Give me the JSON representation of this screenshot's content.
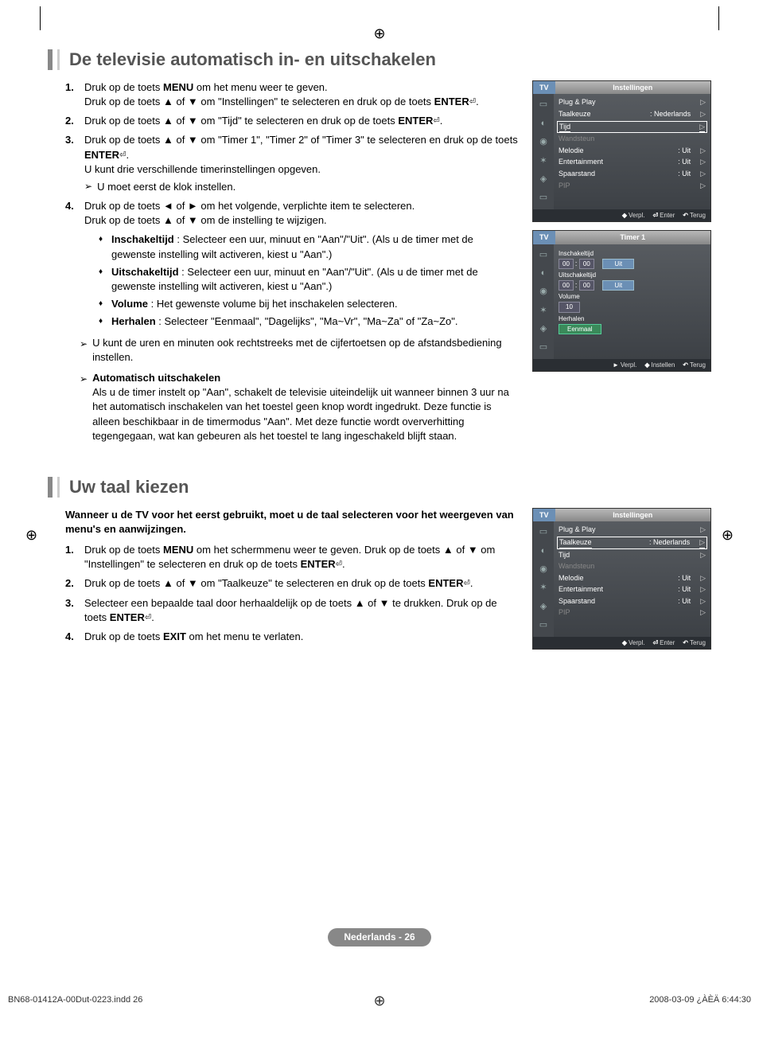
{
  "section1": {
    "title": "De televisie automatisch in- en uitschakelen",
    "steps": [
      {
        "lines": [
          "Druk op de toets <b>MENU</b> om het menu weer te geven.",
          "Druk op de toets ▲ of ▼ om \"Instellingen\" te selecteren en druk op de toets <b>ENTER</b><span class='enter-icon'>⏎</span>."
        ]
      },
      {
        "lines": [
          "Druk op de toets ▲ of ▼ om \"Tijd\" te selecteren en druk op de toets <b>ENTER</b><span class='enter-icon'>⏎</span>."
        ]
      },
      {
        "lines": [
          "Druk op de toets ▲ of ▼ om \"Timer 1\", \"Timer 2\" of \"Timer 3\" te selecteren en druk op de toets <b>ENTER</b><span class='enter-icon'>⏎</span>.",
          "U kunt drie verschillende timerinstellingen opgeven."
        ],
        "note": "U moet eerst de klok instellen."
      },
      {
        "lines": [
          "Druk op de toets ◄ of ► om het volgende, verplichte item te selecteren.",
          "Druk op de toets ▲ of ▼ om de instelling te wijzigen."
        ]
      }
    ],
    "bullets": [
      "<b>Inschakeltijd</b> : Selecteer een uur, minuut en \"Aan\"/\"Uit\". (Als u de timer met de gewenste instelling wilt activeren, kiest u \"Aan\".)",
      "<b>Uitschakeltijd</b> : Selecteer een uur, minuut en \"Aan\"/\"Uit\". (Als u de timer met de gewenste instelling wilt activeren, kiest u \"Aan\".)",
      "<b>Volume</b> : Het gewenste volume bij het inschakelen selecteren.",
      "<b>Herhalen</b> : Selecteer \"Eenmaal\", \"Dagelijks\", \"Ma~Vr\", \"Ma~Za\" of \"Za~Zo\"."
    ],
    "note2": "U kunt de uren en minuten ook rechtstreeks met de cijfertoetsen op de afstandsbediening instellen.",
    "note3_title": "Automatisch uitschakelen",
    "note3_body": "Als u de timer instelt op \"Aan\", schakelt de televisie uiteindelijk uit wanneer binnen 3 uur na het automatisch inschakelen van het toestel geen knop wordt ingedrukt. Deze functie is alleen beschikbaar in de timermodus \"Aan\". Met deze functie wordt oververhitting tegengegaan, wat kan gebeuren als het toestel te lang ingeschakeld blijft staan."
  },
  "section2": {
    "title": "Uw taal kiezen",
    "intro": "Wanneer u de TV voor het eerst gebruikt, moet u de taal selecteren voor het weergeven van menu's en aanwijzingen.",
    "steps": [
      "Druk op de toets <b>MENU</b> om het schermmenu weer te geven. Druk op de toets ▲ of ▼ om \"Instellingen\" te selecteren en druk op de toets <b>ENTER</b><span class='enter-icon'>⏎</span>.",
      "Druk op de toets ▲ of ▼ om \"Taalkeuze\" te selecteren en druk op de toets <b>ENTER</b><span class='enter-icon'>⏎</span>.",
      "Selecteer een bepaalde taal door herhaaldelijk op de toets ▲ of ▼ te drukken. Druk op de toets <b>ENTER</b><span class='enter-icon'>⏎</span>.",
      "Druk op de toets <b>EXIT</b> om het menu te verlaten."
    ]
  },
  "osd1": {
    "tv": "TV",
    "title": "Instellingen",
    "rows": [
      {
        "l": "Plug & Play",
        "v": "",
        "arr": true
      },
      {
        "l": "Taalkeuze",
        "v": ": Nederlands",
        "arr": true
      },
      {
        "l": "Tijd",
        "v": "",
        "arr": true,
        "hl": true
      },
      {
        "l": "Wandsteun",
        "v": "",
        "dim": true
      },
      {
        "l": "Melodie",
        "v": ": Uit",
        "arr": true
      },
      {
        "l": "Entertainment",
        "v": ": Uit",
        "arr": true
      },
      {
        "l": "Spaarstand",
        "v": ": Uit",
        "arr": true
      },
      {
        "l": "PIP",
        "v": "",
        "arr": true,
        "dim": true
      }
    ],
    "footer": {
      "a": "Verpl.",
      "b": "Enter",
      "c": "Terug"
    }
  },
  "osd2": {
    "tv": "TV",
    "title": "Timer 1",
    "inschakel": "Inschakeltijd",
    "uitschakel": "Uitschakeltijd",
    "h": "00",
    "m": "00",
    "uit": "Uit",
    "volume": "Volume",
    "vol_val": "10",
    "herhalen": "Herhalen",
    "eenmaal": "Eenmaal",
    "footer": {
      "a": "Verpl.",
      "b": "Instellen",
      "c": "Terug"
    }
  },
  "osd3": {
    "tv": "TV",
    "title": "Instellingen",
    "rows": [
      {
        "l": "Plug & Play",
        "v": "",
        "arr": true
      },
      {
        "l": "Taalkeuze",
        "v": ": Nederlands",
        "arr": true,
        "hl": true
      },
      {
        "l": "Tijd",
        "v": "",
        "arr": true
      },
      {
        "l": "Wandsteun",
        "v": "",
        "dim": true
      },
      {
        "l": "Melodie",
        "v": ": Uit",
        "arr": true
      },
      {
        "l": "Entertainment",
        "v": ": Uit",
        "arr": true
      },
      {
        "l": "Spaarstand",
        "v": ": Uit",
        "arr": true
      },
      {
        "l": "PIP",
        "v": "",
        "arr": true,
        "dim": true
      }
    ],
    "footer": {
      "a": "Verpl.",
      "b": "Enter",
      "c": "Terug"
    }
  },
  "footer_badge": "Nederlands - 26",
  "print_left": "BN68-01412A-00Dut-0223.indd   26",
  "print_right": "2008-03-09   ¿ÀÈÄ 6:44:30"
}
